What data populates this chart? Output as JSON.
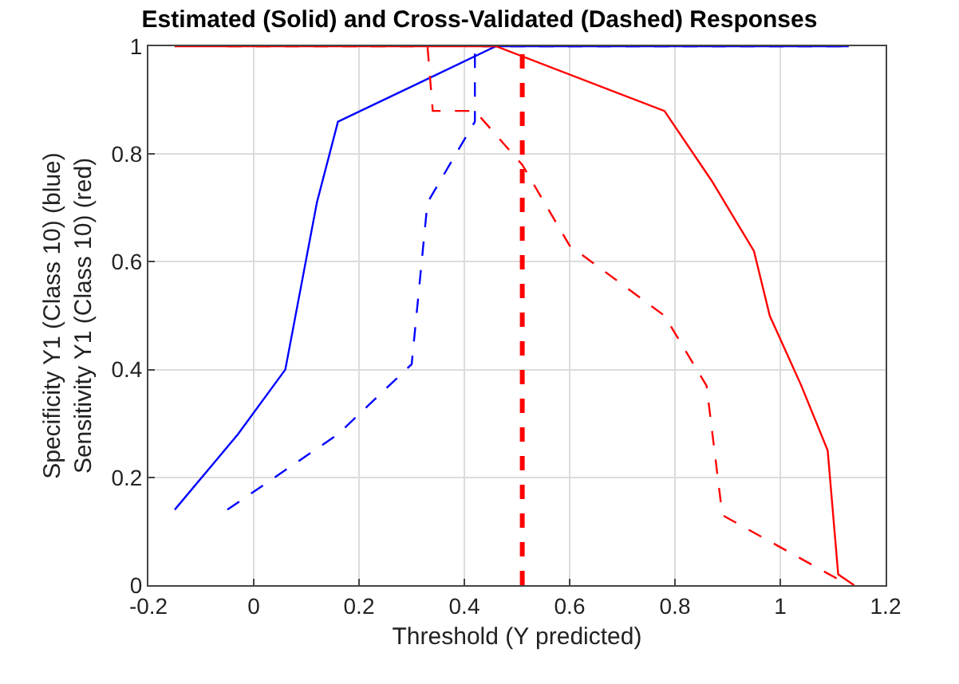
{
  "chart_data": {
    "type": "line",
    "title": "Estimated (Solid) and Cross-Validated (Dashed) Responses",
    "xlabel": "Threshold (Y predicted)",
    "ylabel": "Specificity Y1 (Class 10) (blue)\nSensitivity Y1 (Class 10) (red)",
    "xlim": [
      -0.2,
      1.2
    ],
    "xticks": [
      -0.2,
      0,
      0.2,
      0.4,
      0.6,
      0.8,
      1,
      1.2
    ],
    "ylim": [
      0,
      1
    ],
    "yticks": [
      0,
      0.2,
      0.4,
      0.6,
      0.8,
      1
    ],
    "grid": true,
    "series": [
      {
        "color": "#0000ff",
        "line_style": "solid",
        "x": [
          -0.15,
          -0.03,
          0.06,
          0.12,
          0.16,
          0.46,
          1.13
        ],
        "values": [
          0.14,
          0.28,
          0.4,
          0.71,
          0.86,
          1,
          1
        ]
      },
      {
        "color": "#0000ff",
        "line_style": "dashed",
        "x": [
          -0.05,
          0.16,
          0.3,
          0.33,
          0.42,
          0.42,
          1.13
        ],
        "values": [
          0.14,
          0.28,
          0.41,
          0.71,
          0.86,
          1,
          1
        ]
      },
      {
        "color": "#ff0000",
        "line_style": "solid",
        "x": [
          -0.15,
          0.46,
          0.78,
          0.87,
          0.95,
          0.98,
          1.04,
          1.09,
          1.11,
          1.14
        ],
        "values": [
          1,
          1,
          0.88,
          0.75,
          0.62,
          0.5,
          0.37,
          0.25,
          0.02,
          0
        ]
      },
      {
        "color": "#ff0000",
        "line_style": "dashed",
        "x": [
          -0.05,
          0.33,
          0.34,
          0.42,
          0.51,
          0.6,
          0.78,
          0.86,
          0.89,
          1.13
        ],
        "values": [
          1,
          1,
          0.88,
          0.88,
          0.78,
          0.63,
          0.5,
          0.37,
          0.13,
          0
        ]
      }
    ],
    "ref_lines": [
      {
        "axis": "x",
        "value": 0.51,
        "color": "#ff0000",
        "line_style": "dashed"
      }
    ]
  }
}
